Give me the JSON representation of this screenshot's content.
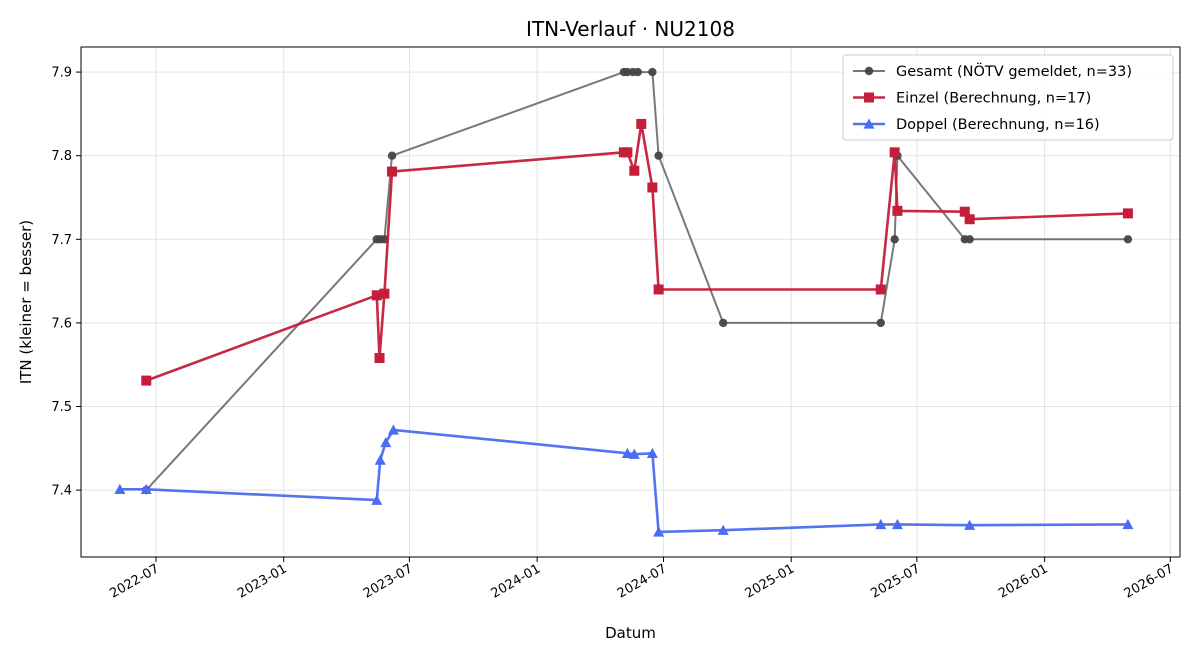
{
  "chart_data": {
    "type": "line",
    "title": "ITN-Verlauf · NU2108",
    "xlabel": "Datum",
    "ylabel": "ITN  (kleiner = besser)",
    "xlim": [
      "2022-03-15",
      "2026-07-15"
    ],
    "ylim": [
      7.32,
      7.93
    ],
    "x_ticks": [
      "2022-07-01",
      "2023-01-01",
      "2023-07-01",
      "2024-01-01",
      "2024-07-01",
      "2025-01-01",
      "2025-07-01",
      "2026-01-01",
      "2026-07-01"
    ],
    "x_tick_labels": [
      "2022-07",
      "2023-01",
      "2023-07",
      "2024-01",
      "2024-07",
      "2025-01",
      "2025-07",
      "2026-01",
      "2026-07"
    ],
    "y_ticks": [
      7.4,
      7.5,
      7.6,
      7.7,
      7.8,
      7.9
    ],
    "y_tick_labels": [
      "7.4",
      "7.5",
      "7.6",
      "7.7",
      "7.8",
      "7.9"
    ],
    "grid": true,
    "legend_position": "top-right",
    "series": [
      {
        "name": "Gesamt (NÖTV gemeldet, n=33)",
        "color": "#444444",
        "marker": "circle",
        "points": [
          [
            "2022-06-17",
            7.4
          ],
          [
            "2023-05-15",
            7.7
          ],
          [
            "2023-05-20",
            7.7
          ],
          [
            "2023-05-26",
            7.7
          ],
          [
            "2023-06-06",
            7.8
          ],
          [
            "2024-05-05",
            7.9
          ],
          [
            "2024-05-10",
            7.9
          ],
          [
            "2024-05-18",
            7.9
          ],
          [
            "2024-05-25",
            7.9
          ],
          [
            "2024-06-15",
            7.9
          ],
          [
            "2024-06-24",
            7.8
          ],
          [
            "2024-09-25",
            7.6
          ],
          [
            "2025-05-10",
            7.6
          ],
          [
            "2025-05-30",
            7.7
          ],
          [
            "2025-06-03",
            7.8
          ],
          [
            "2025-09-08",
            7.7
          ],
          [
            "2025-09-15",
            7.7
          ],
          [
            "2026-05-01",
            7.7
          ]
        ]
      },
      {
        "name": "Einzel (Berechnung, n=17)",
        "color": "#c41e3a",
        "marker": "square",
        "points": [
          [
            "2022-06-17",
            7.531
          ],
          [
            "2023-05-15",
            7.633
          ],
          [
            "2023-05-19",
            7.558
          ],
          [
            "2023-05-26",
            7.635
          ],
          [
            "2023-06-06",
            7.781
          ],
          [
            "2024-05-05",
            7.804
          ],
          [
            "2024-05-10",
            7.804
          ],
          [
            "2024-05-20",
            7.782
          ],
          [
            "2024-05-30",
            7.838
          ],
          [
            "2024-06-15",
            7.762
          ],
          [
            "2024-06-24",
            7.64
          ],
          [
            "2025-05-10",
            7.64
          ],
          [
            "2025-05-30",
            7.804
          ],
          [
            "2025-06-03",
            7.734
          ],
          [
            "2025-09-08",
            7.733
          ],
          [
            "2025-09-15",
            7.724
          ],
          [
            "2026-05-01",
            7.731
          ]
        ]
      },
      {
        "name": "Doppel (Berechnung, n=16)",
        "color": "#4a6cf0",
        "marker": "triangle",
        "points": [
          [
            "2022-05-10",
            7.401
          ],
          [
            "2022-06-17",
            7.401
          ],
          [
            "2023-05-15",
            7.388
          ],
          [
            "2023-05-20",
            7.436
          ],
          [
            "2023-05-28",
            7.457
          ],
          [
            "2023-06-08",
            7.472
          ],
          [
            "2024-05-10",
            7.444
          ],
          [
            "2024-05-20",
            7.443
          ],
          [
            "2024-06-15",
            7.444
          ],
          [
            "2024-06-24",
            7.35
          ],
          [
            "2024-09-25",
            7.352
          ],
          [
            "2025-05-10",
            7.359
          ],
          [
            "2025-06-03",
            7.359
          ],
          [
            "2025-09-15",
            7.358
          ],
          [
            "2026-05-01",
            7.359
          ]
        ]
      }
    ]
  }
}
